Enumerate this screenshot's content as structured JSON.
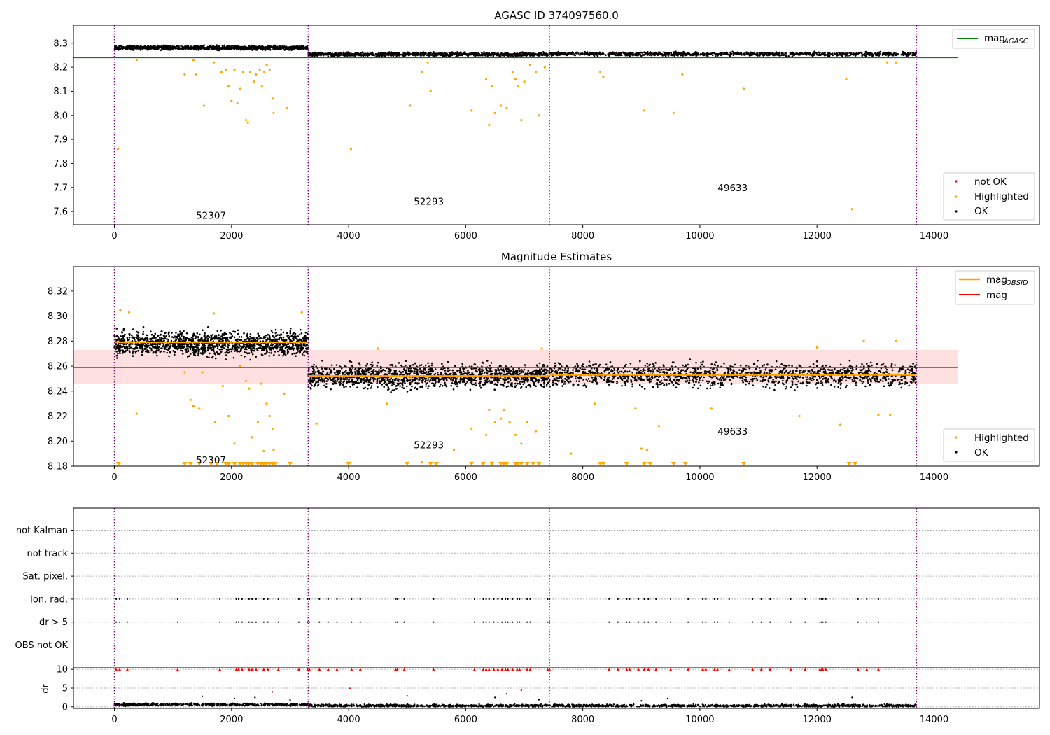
{
  "page_title": "AGASC ID 374097560.0",
  "chart_data": [
    {
      "type": "scatter",
      "title": "AGASC ID 374097560.0",
      "xlim": [
        -700,
        15800
      ],
      "ylim": [
        7.545,
        8.375
      ],
      "x_ticks": [
        0,
        2000,
        4000,
        6000,
        8000,
        10000,
        12000,
        14000
      ],
      "x_tick_labels": [
        "0",
        "2000",
        "4000",
        "6000",
        "8000",
        "10000",
        "12000",
        "14000"
      ],
      "y_ticks": [
        7.6,
        7.7,
        7.8,
        7.9,
        8.0,
        8.1,
        8.2,
        8.3
      ],
      "y_tick_labels": [
        "7.6",
        "7.7",
        "7.8",
        "7.9",
        "8.0",
        "8.1",
        "8.2",
        "8.3"
      ],
      "obs_boundaries": [
        0,
        3310,
        7430,
        13700
      ],
      "obsid_labels": [
        {
          "text": "52307",
          "x": 1650,
          "y": 7.585
        },
        {
          "text": "52293",
          "x": 5370,
          "y": 7.643
        },
        {
          "text": "49633",
          "x": 10560,
          "y": 7.7
        }
      ],
      "reference_lines": [
        {
          "name": "mag",
          "subscript": "AGASC",
          "y": 8.24,
          "x_range": [
            -700,
            14400
          ],
          "color": "#008000"
        }
      ],
      "bands": [
        {
          "x_range": [
            0,
            3310
          ],
          "y_center": 8.281,
          "spread": 0.006
        },
        {
          "x_range": [
            3310,
            7430
          ],
          "y_center": 8.254,
          "spread": 0.0055
        },
        {
          "x_range": [
            7430,
            13700
          ],
          "y_center": 8.255,
          "spread": 0.0055
        }
      ],
      "highlighted_points": [
        [
          60,
          7.86
        ],
        [
          380,
          8.23
        ],
        [
          1200,
          8.17
        ],
        [
          1350,
          8.23
        ],
        [
          1400,
          8.17
        ],
        [
          1530,
          8.04
        ],
        [
          1700,
          8.22
        ],
        [
          1830,
          8.18
        ],
        [
          1900,
          8.19
        ],
        [
          1950,
          8.12
        ],
        [
          2000,
          8.06
        ],
        [
          2050,
          8.19
        ],
        [
          2100,
          8.05
        ],
        [
          2150,
          8.11
        ],
        [
          2200,
          8.18
        ],
        [
          2250,
          7.98
        ],
        [
          2280,
          7.97
        ],
        [
          2320,
          8.18
        ],
        [
          2380,
          8.14
        ],
        [
          2420,
          8.17
        ],
        [
          2480,
          8.19
        ],
        [
          2520,
          8.12
        ],
        [
          2560,
          8.18
        ],
        [
          2600,
          8.21
        ],
        [
          2650,
          8.19
        ],
        [
          2700,
          8.07
        ],
        [
          2720,
          8.01
        ],
        [
          2950,
          8.03
        ],
        [
          5050,
          8.04
        ],
        [
          5250,
          8.18
        ],
        [
          5350,
          8.22
        ],
        [
          5400,
          8.1
        ],
        [
          4040,
          7.86
        ],
        [
          6100,
          8.02
        ],
        [
          6350,
          8.15
        ],
        [
          6400,
          7.96
        ],
        [
          6450,
          8.12
        ],
        [
          6500,
          8.01
        ],
        [
          6600,
          8.04
        ],
        [
          6700,
          8.03
        ],
        [
          6800,
          8.18
        ],
        [
          6850,
          8.15
        ],
        [
          6900,
          8.12
        ],
        [
          6950,
          7.98
        ],
        [
          7000,
          8.14
        ],
        [
          7100,
          8.21
        ],
        [
          7200,
          8.18
        ],
        [
          7250,
          8.0
        ],
        [
          7350,
          8.2
        ],
        [
          8300,
          8.18
        ],
        [
          8350,
          8.16
        ],
        [
          9050,
          8.02
        ],
        [
          9550,
          8.01
        ],
        [
          9700,
          8.17
        ],
        [
          10750,
          8.11
        ],
        [
          12500,
          8.15
        ],
        [
          12600,
          7.61
        ],
        [
          13200,
          8.22
        ],
        [
          13350,
          8.22
        ]
      ],
      "legend": [
        "not OK",
        "Highlighted",
        "OK"
      ],
      "legend_colors": [
        "#ff0000",
        "#ffa500",
        "#000000"
      ],
      "legend_top": [
        "mag",
        "AGASC"
      ]
    },
    {
      "type": "scatter",
      "title": "Magnitude Estimates",
      "xlim": [
        -700,
        15800
      ],
      "ylim": [
        8.18,
        8.3395
      ],
      "x_ticks": [
        0,
        2000,
        4000,
        6000,
        8000,
        10000,
        12000,
        14000
      ],
      "x_tick_labels": [
        "0",
        "2000",
        "4000",
        "6000",
        "8000",
        "10000",
        "12000",
        "14000"
      ],
      "y_ticks": [
        8.18,
        8.2,
        8.22,
        8.24,
        8.26,
        8.28,
        8.3,
        8.32
      ],
      "y_tick_labels": [
        "8.18",
        "8.20",
        "8.22",
        "8.24",
        "8.26",
        "8.28",
        "8.30",
        "8.32"
      ],
      "obs_boundaries": [
        0,
        3310,
        7430,
        13700
      ],
      "obsid_labels": [
        {
          "text": "52307",
          "x": 1650,
          "y": 8.185
        },
        {
          "text": "52293",
          "x": 5370,
          "y": 8.197
        },
        {
          "text": "49633",
          "x": 10560,
          "y": 8.208
        }
      ],
      "mag": 8.259,
      "mag_band": [
        8.246,
        8.273
      ],
      "mag_x_range": [
        -700,
        14400
      ],
      "mag_obsid": [
        {
          "x_range": [
            0,
            3310
          ],
          "y": 8.279
        },
        {
          "x_range": [
            3310,
            7430
          ],
          "y": 8.252
        },
        {
          "x_range": [
            7430,
            13700
          ],
          "y": 8.253
        }
      ],
      "bands": [
        {
          "x_range": [
            0,
            3310
          ],
          "y_center": 8.278,
          "spread": 0.0065
        },
        {
          "x_range": [
            3310,
            7430
          ],
          "y_center": 8.252,
          "spread": 0.0065
        },
        {
          "x_range": [
            7430,
            13700
          ],
          "y_center": 8.253,
          "spread": 0.0065
        }
      ],
      "highlighted_points": [
        [
          100,
          8.305
        ],
        [
          250,
          8.303
        ],
        [
          380,
          8.222
        ],
        [
          1200,
          8.255
        ],
        [
          1300,
          8.233
        ],
        [
          1350,
          8.228
        ],
        [
          1450,
          8.226
        ],
        [
          1500,
          8.255
        ],
        [
          1700,
          8.302
        ],
        [
          1720,
          8.215
        ],
        [
          1850,
          8.244
        ],
        [
          1950,
          8.22
        ],
        [
          2050,
          8.198
        ],
        [
          2150,
          8.26
        ],
        [
          2250,
          8.248
        ],
        [
          2300,
          8.242
        ],
        [
          2350,
          8.203
        ],
        [
          2450,
          8.215
        ],
        [
          2500,
          8.246
        ],
        [
          2550,
          8.192
        ],
        [
          2600,
          8.23
        ],
        [
          2650,
          8.22
        ],
        [
          2700,
          8.21
        ],
        [
          2720,
          8.193
        ],
        [
          2900,
          8.238
        ],
        [
          3200,
          8.303
        ],
        [
          3450,
          8.214
        ],
        [
          4500,
          8.274
        ],
        [
          4650,
          8.23
        ],
        [
          5050,
          8.25
        ],
        [
          5250,
          8.183
        ],
        [
          5800,
          8.193
        ],
        [
          6100,
          8.21
        ],
        [
          6350,
          8.205
        ],
        [
          6400,
          8.225
        ],
        [
          6500,
          8.215
        ],
        [
          6600,
          8.218
        ],
        [
          6650,
          8.225
        ],
        [
          6750,
          8.215
        ],
        [
          6850,
          8.205
        ],
        [
          6950,
          8.198
        ],
        [
          7050,
          8.215
        ],
        [
          7200,
          8.208
        ],
        [
          7300,
          8.274
        ],
        [
          7800,
          8.19
        ],
        [
          8200,
          8.23
        ],
        [
          8900,
          8.226
        ],
        [
          9000,
          8.194
        ],
        [
          9100,
          8.193
        ],
        [
          9300,
          8.212
        ],
        [
          10200,
          8.226
        ],
        [
          11700,
          8.22
        ],
        [
          12000,
          8.275
        ],
        [
          12400,
          8.213
        ],
        [
          12800,
          8.28
        ],
        [
          13050,
          8.221
        ],
        [
          13250,
          8.221
        ],
        [
          13350,
          8.28
        ]
      ],
      "clipped_points": [
        70,
        1200,
        1300,
        1450,
        1650,
        1750,
        1900,
        1950,
        2050,
        2150,
        2200,
        2250,
        2300,
        2350,
        2450,
        2500,
        2550,
        2600,
        2650,
        2700,
        2750,
        3000,
        4000,
        5000,
        5400,
        5500,
        6100,
        6300,
        6450,
        6600,
        6650,
        6700,
        6850,
        6900,
        6950,
        7050,
        7150,
        7250,
        8300,
        8350,
        8750,
        9050,
        9150,
        9550,
        9750,
        10750,
        12550,
        12650
      ],
      "legend": [
        "Highlighted",
        "OK"
      ],
      "legend_colors": [
        "#ffa500",
        "#000000"
      ],
      "legend_top": [
        {
          "label": "mag",
          "subscript": "OBSID",
          "color": "#ffa500"
        },
        {
          "label": "mag",
          "subscript": "",
          "color": "#ff0000"
        }
      ]
    },
    {
      "type": "scatter",
      "title": "",
      "xlim": [
        -700,
        15800
      ],
      "categories": [
        "OBS not OK",
        "dr > 5",
        "Ion. rad.",
        "Sat. pixel.",
        "not track",
        "not Kalman"
      ],
      "obs_boundaries": [
        0,
        3310,
        7430,
        13700
      ],
      "flag_x": [
        30,
        90,
        220,
        1080,
        1800,
        2080,
        2120,
        2180,
        2300,
        2350,
        2420,
        2550,
        2620,
        2800,
        3150,
        3300,
        3330,
        3500,
        3650,
        3800,
        4050,
        4200,
        4800,
        4830,
        4950,
        5450,
        6150,
        6300,
        6350,
        6400,
        6480,
        6550,
        6620,
        6680,
        6720,
        6800,
        6880,
        6920,
        7050,
        7100,
        7400,
        7430,
        8450,
        8600,
        8750,
        8800,
        8950,
        9050,
        9120,
        9250,
        9500,
        9800,
        10050,
        10100,
        10250,
        10300,
        10500,
        10900,
        11050,
        11200,
        11550,
        11800,
        12050,
        12080,
        12100,
        12150,
        12700,
        12850,
        13050
      ],
      "flag_rows": [
        "Ion. rad.",
        "dr > 5"
      ]
    },
    {
      "type": "scatter",
      "title": "",
      "xlim": [
        -700,
        15800
      ],
      "ylim": [
        -0.4,
        10.4
      ],
      "ylabel": "dr",
      "x_ticks": [
        0,
        2000,
        4000,
        6000,
        8000,
        10000,
        12000,
        14000
      ],
      "x_tick_labels": [
        "0",
        "2000",
        "4000",
        "6000",
        "8000",
        "10000",
        "12000",
        "14000"
      ],
      "y_ticks": [
        0,
        5,
        10
      ],
      "y_tick_labels": [
        "0",
        "5",
        "10"
      ],
      "obs_boundaries": [
        0,
        3310,
        7430,
        13700
      ],
      "outliers": [
        [
          1500,
          2.8
        ],
        [
          2050,
          2.2
        ],
        [
          2400,
          2.5
        ],
        [
          2700,
          4.0
        ],
        [
          3000,
          1.8
        ],
        [
          4020,
          4.9
        ],
        [
          5000,
          2.9
        ],
        [
          6500,
          2.5
        ],
        [
          6700,
          3.5
        ],
        [
          6950,
          4.4
        ],
        [
          7250,
          1.9
        ],
        [
          9000,
          1.6
        ],
        [
          9450,
          2.2
        ],
        [
          12600,
          2.5
        ]
      ],
      "capped_color": "#ff0000"
    }
  ]
}
